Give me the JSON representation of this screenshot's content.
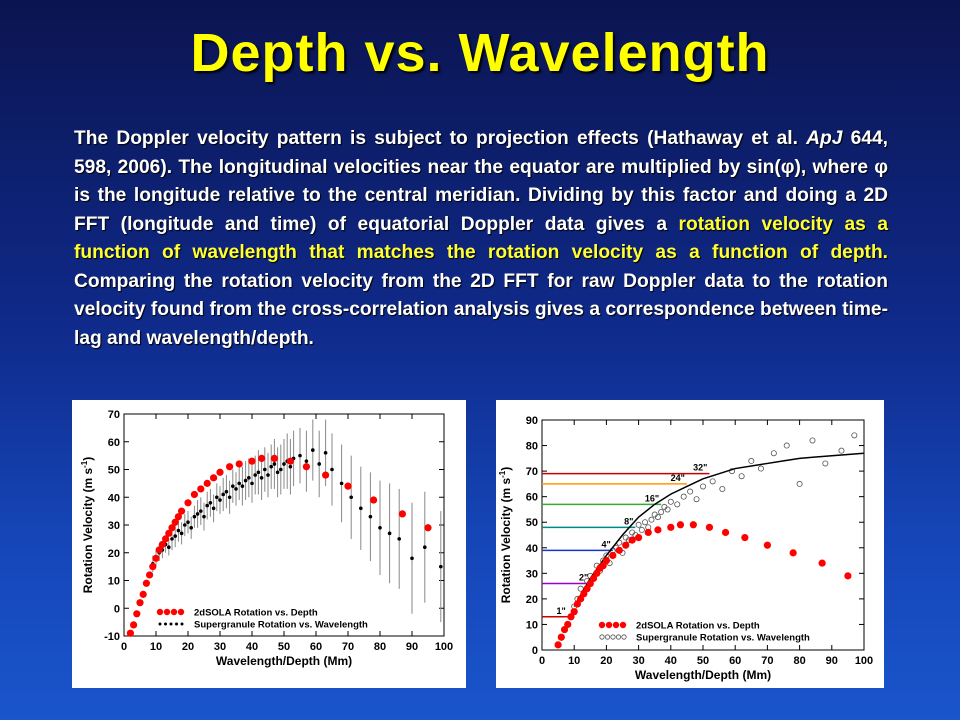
{
  "slide": {
    "title": "Depth vs. Wavelength",
    "para": {
      "p1": "The Doppler velocity pattern is subject to projection effects (Hathaway et al. ",
      "journal": "ApJ",
      "p2": " 644, 598, 2006). The longitudinal velocities near the equator are multiplied by sin(φ), where φ is the longitude relative to the central meridian. Dividing by this factor and doing a 2D FFT (longitude and time) of equatorial Doppler data gives a ",
      "highlight": "rotation velocity as a function of wavelength that matches the rotation velocity as a function of depth.",
      "p3": " Comparing the rotation velocity from the 2D FFT for raw Doppler data to the rotation velocity found from the cross-correlation analysis gives a correspondence between time-lag and wavelength/depth."
    }
  },
  "colors": {
    "title": "#ffff00",
    "highlight": "#ffff33",
    "solid_marker": "#ff0000",
    "wave_marker": "#000000",
    "fit_line": "#000000"
  },
  "chart_data": [
    {
      "type": "scatter",
      "xlabel": "Wavelength/Depth (Mm)",
      "ylabel_main": "Rotation Velocity (m s",
      "ylabel_sup": "-1",
      "ylabel_end": ")",
      "xlim": [
        0,
        100
      ],
      "ylim": [
        -10,
        70
      ],
      "xticks": [
        0,
        10,
        20,
        30,
        40,
        50,
        60,
        70,
        80,
        90,
        100
      ],
      "yticks": [
        -10,
        0,
        10,
        20,
        30,
        40,
        50,
        60,
        70
      ],
      "legend_position": "bottom-right",
      "series": [
        {
          "name": "2dSOLA Rotation vs. Depth",
          "marker": "filled-red-circle",
          "x": [
            2,
            3,
            4,
            5,
            6,
            7,
            8,
            9,
            10,
            11,
            12,
            13,
            14,
            15,
            16,
            17,
            18,
            20,
            22,
            24,
            26,
            28,
            30,
            33,
            36,
            40,
            43,
            47,
            52,
            57,
            63,
            70,
            78,
            87,
            95
          ],
          "y": [
            -9,
            -6,
            -2,
            2,
            5,
            9,
            12,
            15,
            18,
            21,
            23,
            25,
            27,
            29,
            31,
            33,
            35,
            38,
            41,
            43,
            45,
            47,
            49,
            51,
            52,
            53,
            54,
            54,
            53,
            51,
            48,
            44,
            39,
            34,
            29
          ]
        },
        {
          "name": "Supergranule Rotation vs. Wavelength",
          "marker": "small-black-dot-with-error-bars",
          "x": [
            9,
            10,
            11,
            12,
            13,
            14,
            15,
            16,
            17,
            18,
            19,
            20,
            21,
            22,
            23,
            24,
            25,
            26,
            27,
            28,
            29,
            30,
            31,
            32,
            33,
            34,
            35,
            36,
            37,
            38,
            39,
            40,
            41,
            42,
            43,
            44,
            45,
            46,
            47,
            48,
            49,
            50,
            51,
            52,
            53,
            55,
            57,
            59,
            61,
            63,
            65,
            68,
            71,
            74,
            77,
            80,
            83,
            86,
            90,
            94,
            99
          ],
          "y": [
            16,
            18,
            20,
            21,
            23,
            22,
            25,
            26,
            28,
            27,
            30,
            31,
            29,
            33,
            34,
            35,
            33,
            37,
            38,
            36,
            40,
            39,
            41,
            42,
            40,
            44,
            43,
            45,
            44,
            46,
            47,
            45,
            48,
            49,
            47,
            50,
            48,
            51,
            52,
            49,
            50,
            52,
            53,
            51,
            54,
            55,
            53,
            57,
            52,
            56,
            50,
            45,
            40,
            36,
            33,
            29,
            27,
            25,
            18,
            22,
            15
          ],
          "err": [
            3,
            3,
            3,
            3,
            3,
            3,
            4,
            4,
            4,
            4,
            4,
            4,
            4,
            4,
            5,
            5,
            5,
            5,
            5,
            5,
            5,
            5,
            6,
            6,
            6,
            6,
            6,
            6,
            7,
            7,
            7,
            7,
            7,
            8,
            8,
            8,
            8,
            8,
            9,
            9,
            9,
            9,
            10,
            10,
            10,
            10,
            11,
            11,
            12,
            12,
            13,
            14,
            15,
            15,
            16,
            17,
            18,
            18,
            20,
            20,
            20
          ]
        }
      ]
    },
    {
      "type": "scatter",
      "xlabel": "Wavelength/Depth (Mm)",
      "ylabel_main": "Rotation Velocity (m s",
      "ylabel_sup": "-1",
      "ylabel_end": ")",
      "xlim": [
        0,
        100
      ],
      "ylim": [
        0,
        90
      ],
      "xticks": [
        0,
        10,
        20,
        30,
        40,
        50,
        60,
        70,
        80,
        90,
        100
      ],
      "yticks": [
        0,
        10,
        20,
        30,
        40,
        50,
        60,
        70,
        80,
        90
      ],
      "legend_position": "bottom-right",
      "reference_lines": [
        {
          "label": "1\"",
          "y": 13,
          "x_end": 8,
          "color": "#cc0000"
        },
        {
          "label": "2\"",
          "y": 26,
          "x_end": 15,
          "color": "#9900cc"
        },
        {
          "label": "4\"",
          "y": 39,
          "x_end": 22,
          "color": "#1a33cc"
        },
        {
          "label": "8\"",
          "y": 48,
          "x_end": 29,
          "color": "#008888"
        },
        {
          "label": "16\"",
          "y": 57,
          "x_end": 37,
          "color": "#33aa33"
        },
        {
          "label": "24\"",
          "y": 65,
          "x_end": 45,
          "color": "#ff9900"
        },
        {
          "label": "32\"",
          "y": 69,
          "x_end": 52,
          "color": "#cc0000"
        }
      ],
      "fit_curve": {
        "x": [
          10,
          15,
          20,
          25,
          30,
          35,
          40,
          45,
          50,
          55,
          60,
          65,
          70,
          75,
          80,
          85,
          90,
          95,
          100
        ],
        "y": [
          17,
          28,
          37,
          45,
          52,
          57,
          61,
          64,
          67,
          69,
          71,
          72,
          73,
          74,
          75,
          75.5,
          76,
          76.5,
          77
        ]
      },
      "series": [
        {
          "name": "2dSOLA Rotation vs. Depth",
          "marker": "filled-red-circle",
          "x": [
            5,
            6,
            7,
            8,
            9,
            10,
            11,
            12,
            13,
            14,
            15,
            16,
            17,
            18,
            19,
            20,
            22,
            24,
            26,
            28,
            30,
            33,
            36,
            40,
            43,
            47,
            52,
            57,
            63,
            70,
            78,
            87,
            95
          ],
          "y": [
            2,
            5,
            8,
            10,
            13,
            15,
            18,
            20,
            22,
            24,
            26,
            28,
            30,
            32,
            33,
            35,
            37,
            39,
            41,
            43,
            44,
            46,
            47,
            48,
            49,
            49,
            48,
            46,
            44,
            41,
            38,
            34,
            29
          ]
        },
        {
          "name": "Supergranule Rotation vs. Wavelength",
          "marker": "open-gray-circle",
          "x": [
            10,
            11,
            12,
            13,
            14,
            15,
            16,
            17,
            18,
            19,
            20,
            21,
            22,
            23,
            24,
            25,
            26,
            27,
            28,
            29,
            30,
            31,
            32,
            33,
            34,
            35,
            36,
            37,
            38,
            39,
            40,
            42,
            44,
            46,
            48,
            50,
            53,
            56,
            59,
            62,
            65,
            68,
            72,
            76,
            80,
            84,
            88,
            93,
            97
          ],
          "y": [
            17,
            20,
            24,
            22,
            27,
            29,
            28,
            33,
            31,
            35,
            37,
            34,
            39,
            40,
            42,
            38,
            44,
            43,
            46,
            45,
            49,
            47,
            50,
            48,
            51,
            53,
            52,
            54,
            56,
            55,
            58,
            57,
            60,
            62,
            59,
            64,
            66,
            63,
            70,
            68,
            74,
            71,
            77,
            80,
            65,
            82,
            73,
            78,
            84
          ]
        }
      ]
    }
  ]
}
